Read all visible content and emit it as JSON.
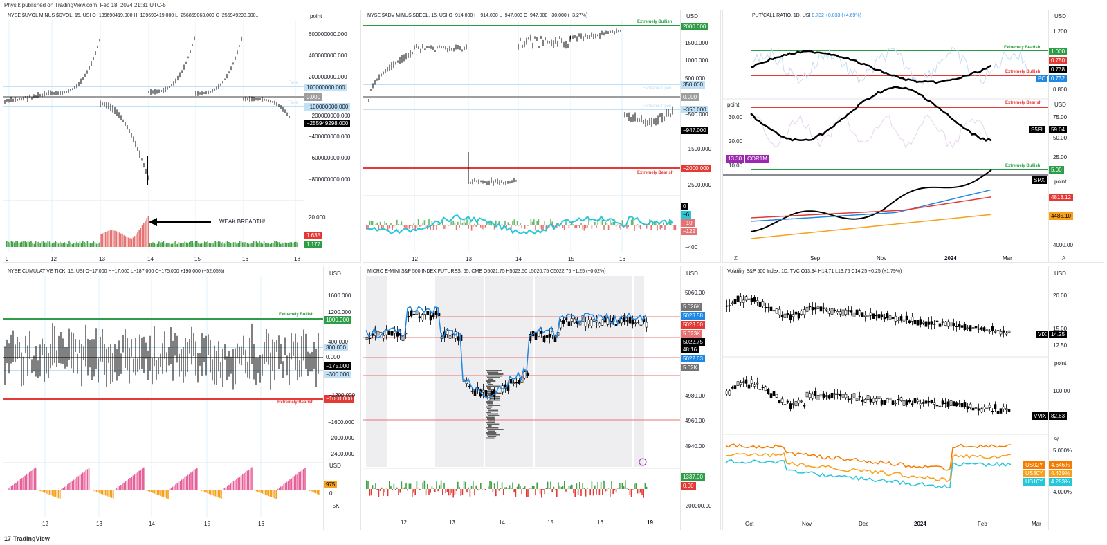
{
  "header": {
    "text": "Physik published on TradingView.com, Feb 18, 2024 21:31 UTC-5"
  },
  "footer": {
    "logo": "17",
    "brand": "TradingView"
  },
  "colors": {
    "green": "#2e9d47",
    "red": "#e53935",
    "lightblue": "#bfe0f5",
    "black": "#000000",
    "gray": "#9e9e9e",
    "orange": "#f7a01b",
    "teal": "#26c6da",
    "blue": "#1e88e5",
    "pink": "#e6609a",
    "purple": "#9c27b0"
  },
  "p1": {
    "title": "NYSE $UVOL MINUS $DVOL, 15, USI  O−139690419.000  H−139690419.000  L−256859063.000  C−255949298.000...",
    "unit": "point",
    "ticks": [
      "600000000.000",
      "400000000.000",
      "200000000.000",
      "−200000000.000",
      "−400000000.000",
      "−600000000.000",
      "−800000000.000"
    ],
    "tags": {
      "up": "100000000.000",
      "zero": "0.000",
      "down": "−100000000.000",
      "last": "−255949298.000"
    },
    "zone_label": "Fade",
    "osc_tick": "20.000",
    "osc_tags": [
      "1.635",
      "1.177"
    ],
    "annotation": "WEAK BREADTH!",
    "xticks": [
      "9",
      "12",
      "13",
      "14",
      "15",
      "16",
      "18"
    ]
  },
  "p2": {
    "title": "NYSE $ADV MINUS $DECL, 15, USI  O−914.000  H−914.000  L−947.000  C−947.000  −30.000 (−3.27%)",
    "unit": "USD",
    "ticks": [
      "1500.000",
      "1000.000",
      "500.000",
      "−500.000",
      "−1500.000",
      "−2500.000"
    ],
    "tags": {
      "top": "2000.000",
      "up": "350.000",
      "zero": "0.000",
      "down": "−350.000",
      "last": "−947.000",
      "bottom": "−2000.000"
    },
    "zones": {
      "bull": "Extremely Bullish",
      "fade_up": "Fadeable Open",
      "fade_down": "Fadeable Open",
      "bear": "Extremely Bearish"
    },
    "osc_tags": [
      "0",
      "−6",
      "−10",
      "−122"
    ],
    "osc_tick": "−400",
    "xticks": [
      "12",
      "13",
      "14",
      "15",
      "16"
    ]
  },
  "p3": {
    "title": "PUT/CALL RATIO, 1D, USI",
    "title_vals": "0.732  +0.033 (+4.69%)",
    "unit": "USD",
    "ticks_top": [
      "1.200",
      "0.800"
    ],
    "tags_top": {
      "bear": "1.000",
      "red": "0.750",
      "blk": "0.738",
      "pc_label": "PC",
      "pc": "0.732"
    },
    "zones_top": {
      "bear": "Extremely Bearish",
      "bull": "Extremely Bullish"
    },
    "unit_mid_left": "point",
    "unit_mid": "USD",
    "ticks_mid_left": [
      "30.00",
      "20.00",
      "10.00"
    ],
    "ticks_mid": [
      "75.00",
      "50.00",
      "25.00"
    ],
    "tags_mid": {
      "s5fi_label": "S5FI",
      "s5fi": "59.04",
      "cor_val": "13.30",
      "cor_label": "COR1M",
      "bull": "5.00"
    },
    "zones_mid": {
      "bear": "Extremely Bearish",
      "bull": "Extremely Bullish"
    },
    "unit_bot": "point",
    "spx_label": "SPX",
    "tags_bot": [
      "4813.12",
      "4485.10"
    ],
    "ticks_bot": [
      "4000.00"
    ],
    "xticks": [
      "Sep",
      "Nov",
      "2024",
      "Mar"
    ],
    "corner_left": "Z",
    "corner_right": "A"
  },
  "p4": {
    "title": "NYSE CUMULATIVE TICK, 15, USI  O−17.000  H−17.000  L−187.000  C−175.000  +190.000 (+52.05%)",
    "unit": "USD",
    "ticks": [
      "1600.000",
      "1200.000",
      "400.000",
      "−1200.000",
      "−1600.000",
      "−2000.000",
      "−2400.000"
    ],
    "tags": {
      "top": "1000.000",
      "up": "300.000",
      "zero": "0.000",
      "last": "−175.000",
      "down": "−300.000",
      "bottom": "−1000.000"
    },
    "zones": {
      "bull": "Extremely Bullish",
      "bear": "Extremely Bearish"
    },
    "osc_unit": "USD",
    "osc_tag": "975",
    "osc_ticks": [
      "0",
      "−5K"
    ],
    "xticks": [
      "12",
      "13",
      "14",
      "15",
      "16"
    ]
  },
  "p5": {
    "title": "MICRO E-MINI S&P 500 INDEX FUTURES, 65, CME  O5021.75  H5023.50  L5020.75  C5022.75  +1.25 (+0.02%)",
    "unit": "USD",
    "ticks": [
      "5060.00",
      "4980.00",
      "4960.00",
      "4940.00"
    ],
    "tags": {
      "t1": "5.026K",
      "t2": "5023.58",
      "t3": "5023.00",
      "t4": "5.023K",
      "t5": "5022.75",
      "t5b": "48:16",
      "t6": "5022.63",
      "t7": "5.02K"
    },
    "osc_tags": [
      "1337.00",
      "0.00"
    ],
    "osc_tick": "−200000.00",
    "xticks": [
      "12",
      "13",
      "14",
      "15",
      "16",
      "19"
    ]
  },
  "p6": {
    "title": "Volatility S&P 500 Index, 1D, TVC  O13.94  H14.71  L13.75  C14.25  +0.25 (+1.79%)",
    "unit": "USD",
    "ticks_top": [
      "20.00",
      "15.00",
      "12.50"
    ],
    "vix_label": "VIX",
    "vix": "14.25",
    "unit_mid": "point",
    "ticks_mid": [
      "100.00"
    ],
    "vvix_label": "VVIX",
    "vvix": "82.63",
    "unit_bot": "%",
    "ticks_bot": [
      "5.000%",
      "4.000%"
    ],
    "yields": [
      {
        "label": "US02Y",
        "val": "4.646%"
      },
      {
        "label": "US30Y",
        "val": "4.439%"
      },
      {
        "label": "US10Y",
        "val": "4.283%"
      }
    ],
    "xticks": [
      "Oct",
      "Nov",
      "Dec",
      "2024",
      "Feb",
      "Mar"
    ]
  }
}
